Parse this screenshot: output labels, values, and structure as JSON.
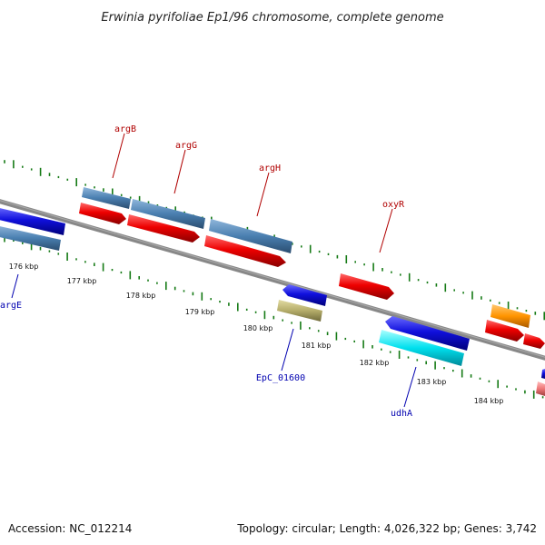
{
  "title": "Erwinia pyrifoliae Ep1/96 chromosome, complete genome",
  "footer": {
    "accession": "Accession: NC_012214",
    "summary": "Topology: circular; Length: 4,026,322 bp; Genes: 3,742"
  },
  "ticks": [
    "176 kbp",
    "177 kbp",
    "178 kbp",
    "179 kbp",
    "180 kbp",
    "181 kbp",
    "182 kbp",
    "183 kbp",
    "184 kbp"
  ],
  "genes": [
    {
      "label": "argB",
      "strand": "plus",
      "color": "#b00000"
    },
    {
      "label": "argG",
      "strand": "plus",
      "color": "#b00000"
    },
    {
      "label": "argH",
      "strand": "plus",
      "color": "#b00000"
    },
    {
      "label": "oxyR",
      "strand": "plus",
      "color": "#b00000"
    },
    {
      "label": "argE",
      "strand": "minus",
      "color": "#0000b0"
    },
    {
      "label": "EpC_01600",
      "strand": "minus",
      "color": "#0000b0"
    },
    {
      "label": "udhA",
      "strand": "minus",
      "color": "#0000b0"
    }
  ],
  "colors": {
    "gene_plus": "#ee0000",
    "gene_minus": "#1010dd",
    "cds_plus": "#4a7fb0",
    "cds_minus": "#4a7fb0",
    "backbone": "#777777",
    "gc_dots": "#157a15",
    "cyan_feature": "#00e0ee",
    "olive_feature": "#b5ad6a",
    "orange_feature": "#ff9400",
    "pink_feature": "#ee7777"
  }
}
